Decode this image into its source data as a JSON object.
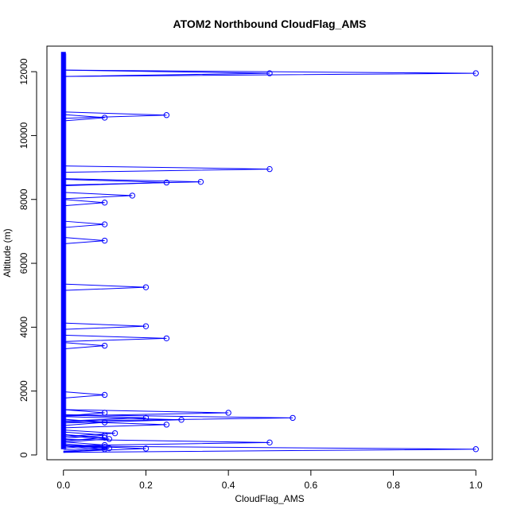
{
  "chart_data": {
    "type": "line",
    "title": "ATOM2 Northbound CloudFlag_AMS",
    "xlabel": "CloudFlag_AMS",
    "ylabel": "Altitude (m)",
    "xlim": [
      -0.04,
      1.04
    ],
    "ylim": [
      -150,
      12800
    ],
    "x_ticks": [
      0.0,
      0.2,
      0.4,
      0.6,
      0.8,
      1.0
    ],
    "x_tick_labels": [
      "0.0",
      "0.2",
      "0.4",
      "0.6",
      "0.8",
      "1.0"
    ],
    "y_ticks": [
      0,
      2000,
      4000,
      6000,
      8000,
      10000,
      12000
    ],
    "y_tick_labels": [
      "0",
      "2000",
      "4000",
      "6000",
      "8000",
      "10000",
      "12000"
    ],
    "colors": {
      "series": "#0000ff",
      "axis": "#000000"
    },
    "baseline": {
      "x": 0,
      "y_min": 180,
      "y_max": 12620
    },
    "spikes": [
      {
        "x": 1.0,
        "y": 11950
      },
      {
        "x": 0.5,
        "y": 11950
      },
      {
        "x": 0.25,
        "y": 10640
      },
      {
        "x": 0.1,
        "y": 10560
      },
      {
        "x": 0.5,
        "y": 8950
      },
      {
        "x": 0.333,
        "y": 8550
      },
      {
        "x": 0.25,
        "y": 8530
      },
      {
        "x": 0.167,
        "y": 8120
      },
      {
        "x": 0.1,
        "y": 7900
      },
      {
        "x": 0.1,
        "y": 7220
      },
      {
        "x": 0.1,
        "y": 6710
      },
      {
        "x": 0.2,
        "y": 5250
      },
      {
        "x": 0.2,
        "y": 4030
      },
      {
        "x": 0.25,
        "y": 3650
      },
      {
        "x": 0.1,
        "y": 3420
      },
      {
        "x": 0.1,
        "y": 1880
      },
      {
        "x": 0.4,
        "y": 1320
      },
      {
        "x": 0.1,
        "y": 1320
      },
      {
        "x": 0.556,
        "y": 1160
      },
      {
        "x": 0.2,
        "y": 1160
      },
      {
        "x": 0.286,
        "y": 1100
      },
      {
        "x": 0.1,
        "y": 1020
      },
      {
        "x": 0.25,
        "y": 950
      },
      {
        "x": 0.125,
        "y": 680
      },
      {
        "x": 0.1,
        "y": 620
      },
      {
        "x": 0.1,
        "y": 540
      },
      {
        "x": 0.111,
        "y": 500
      },
      {
        "x": 0.5,
        "y": 390
      },
      {
        "x": 0.1,
        "y": 310
      },
      {
        "x": 0.1,
        "y": 250
      },
      {
        "x": 0.111,
        "y": 210
      },
      {
        "x": 0.2,
        "y": 200
      },
      {
        "x": 0.1,
        "y": 180
      },
      {
        "x": 1.0,
        "y": 180
      }
    ]
  }
}
